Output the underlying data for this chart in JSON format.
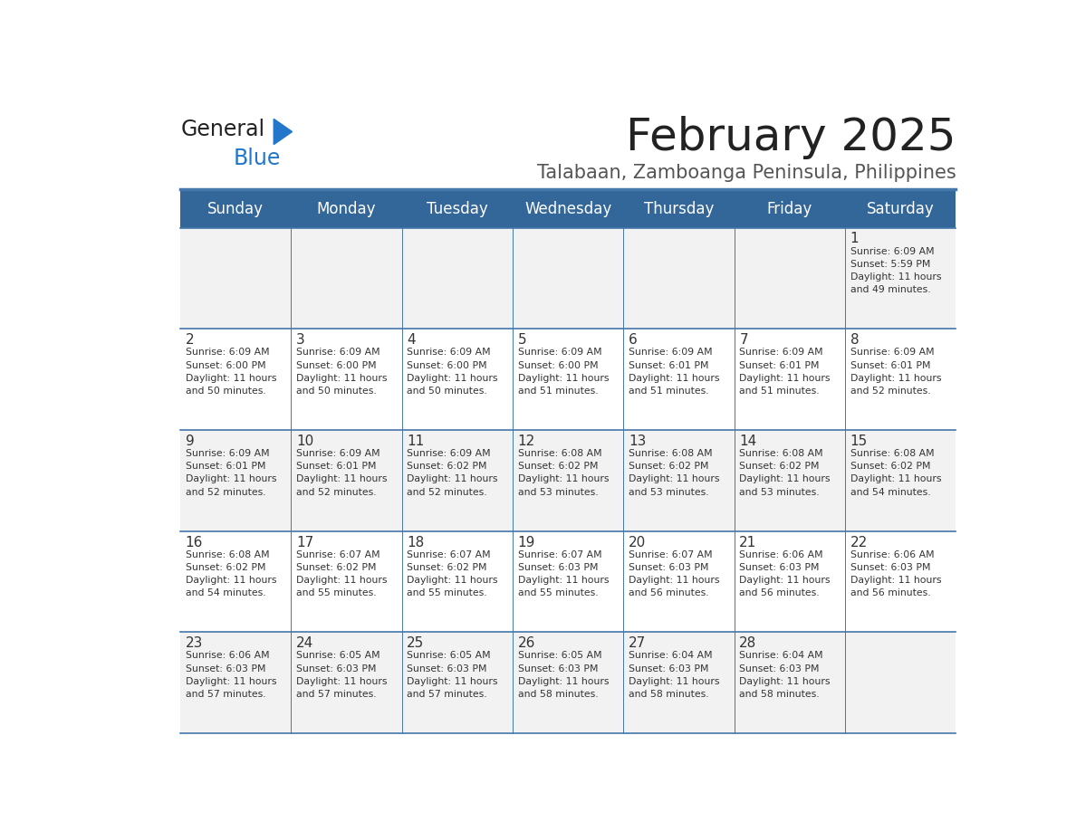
{
  "title": "February 2025",
  "subtitle": "Talabaan, Zamboanga Peninsula, Philippines",
  "days_of_week": [
    "Sunday",
    "Monday",
    "Tuesday",
    "Wednesday",
    "Thursday",
    "Friday",
    "Saturday"
  ],
  "header_bg": "#336699",
  "header_text_color": "#ffffff",
  "odd_row_bg": "#f2f2f2",
  "even_row_bg": "#ffffff",
  "cell_text_color": "#333333",
  "day_num_color": "#333333",
  "border_color": "#4477aa",
  "logo_general_color": "#222222",
  "logo_blue_color": "#2277cc",
  "calendar_data": {
    "1": {
      "sunrise": "6:09 AM",
      "sunset": "5:59 PM",
      "daylight_suffix": "49 minutes."
    },
    "2": {
      "sunrise": "6:09 AM",
      "sunset": "6:00 PM",
      "daylight_suffix": "50 minutes."
    },
    "3": {
      "sunrise": "6:09 AM",
      "sunset": "6:00 PM",
      "daylight_suffix": "50 minutes."
    },
    "4": {
      "sunrise": "6:09 AM",
      "sunset": "6:00 PM",
      "daylight_suffix": "50 minutes."
    },
    "5": {
      "sunrise": "6:09 AM",
      "sunset": "6:00 PM",
      "daylight_suffix": "51 minutes."
    },
    "6": {
      "sunrise": "6:09 AM",
      "sunset": "6:01 PM",
      "daylight_suffix": "51 minutes."
    },
    "7": {
      "sunrise": "6:09 AM",
      "sunset": "6:01 PM",
      "daylight_suffix": "51 minutes."
    },
    "8": {
      "sunrise": "6:09 AM",
      "sunset": "6:01 PM",
      "daylight_suffix": "52 minutes."
    },
    "9": {
      "sunrise": "6:09 AM",
      "sunset": "6:01 PM",
      "daylight_suffix": "52 minutes."
    },
    "10": {
      "sunrise": "6:09 AM",
      "sunset": "6:01 PM",
      "daylight_suffix": "52 minutes."
    },
    "11": {
      "sunrise": "6:09 AM",
      "sunset": "6:02 PM",
      "daylight_suffix": "52 minutes."
    },
    "12": {
      "sunrise": "6:08 AM",
      "sunset": "6:02 PM",
      "daylight_suffix": "53 minutes."
    },
    "13": {
      "sunrise": "6:08 AM",
      "sunset": "6:02 PM",
      "daylight_suffix": "53 minutes."
    },
    "14": {
      "sunrise": "6:08 AM",
      "sunset": "6:02 PM",
      "daylight_suffix": "53 minutes."
    },
    "15": {
      "sunrise": "6:08 AM",
      "sunset": "6:02 PM",
      "daylight_suffix": "54 minutes."
    },
    "16": {
      "sunrise": "6:08 AM",
      "sunset": "6:02 PM",
      "daylight_suffix": "54 minutes."
    },
    "17": {
      "sunrise": "6:07 AM",
      "sunset": "6:02 PM",
      "daylight_suffix": "55 minutes."
    },
    "18": {
      "sunrise": "6:07 AM",
      "sunset": "6:02 PM",
      "daylight_suffix": "55 minutes."
    },
    "19": {
      "sunrise": "6:07 AM",
      "sunset": "6:03 PM",
      "daylight_suffix": "55 minutes."
    },
    "20": {
      "sunrise": "6:07 AM",
      "sunset": "6:03 PM",
      "daylight_suffix": "56 minutes."
    },
    "21": {
      "sunrise": "6:06 AM",
      "sunset": "6:03 PM",
      "daylight_suffix": "56 minutes."
    },
    "22": {
      "sunrise": "6:06 AM",
      "sunset": "6:03 PM",
      "daylight_suffix": "56 minutes."
    },
    "23": {
      "sunrise": "6:06 AM",
      "sunset": "6:03 PM",
      "daylight_suffix": "57 minutes."
    },
    "24": {
      "sunrise": "6:05 AM",
      "sunset": "6:03 PM",
      "daylight_suffix": "57 minutes."
    },
    "25": {
      "sunrise": "6:05 AM",
      "sunset": "6:03 PM",
      "daylight_suffix": "57 minutes."
    },
    "26": {
      "sunrise": "6:05 AM",
      "sunset": "6:03 PM",
      "daylight_suffix": "58 minutes."
    },
    "27": {
      "sunrise": "6:04 AM",
      "sunset": "6:03 PM",
      "daylight_suffix": "58 minutes."
    },
    "28": {
      "sunrise": "6:04 AM",
      "sunset": "6:03 PM",
      "daylight_suffix": "58 minutes."
    }
  },
  "week_layout": [
    [
      null,
      null,
      null,
      null,
      null,
      null,
      1
    ],
    [
      2,
      3,
      4,
      5,
      6,
      7,
      8
    ],
    [
      9,
      10,
      11,
      12,
      13,
      14,
      15
    ],
    [
      16,
      17,
      18,
      19,
      20,
      21,
      22
    ],
    [
      23,
      24,
      25,
      26,
      27,
      28,
      null
    ]
  ]
}
